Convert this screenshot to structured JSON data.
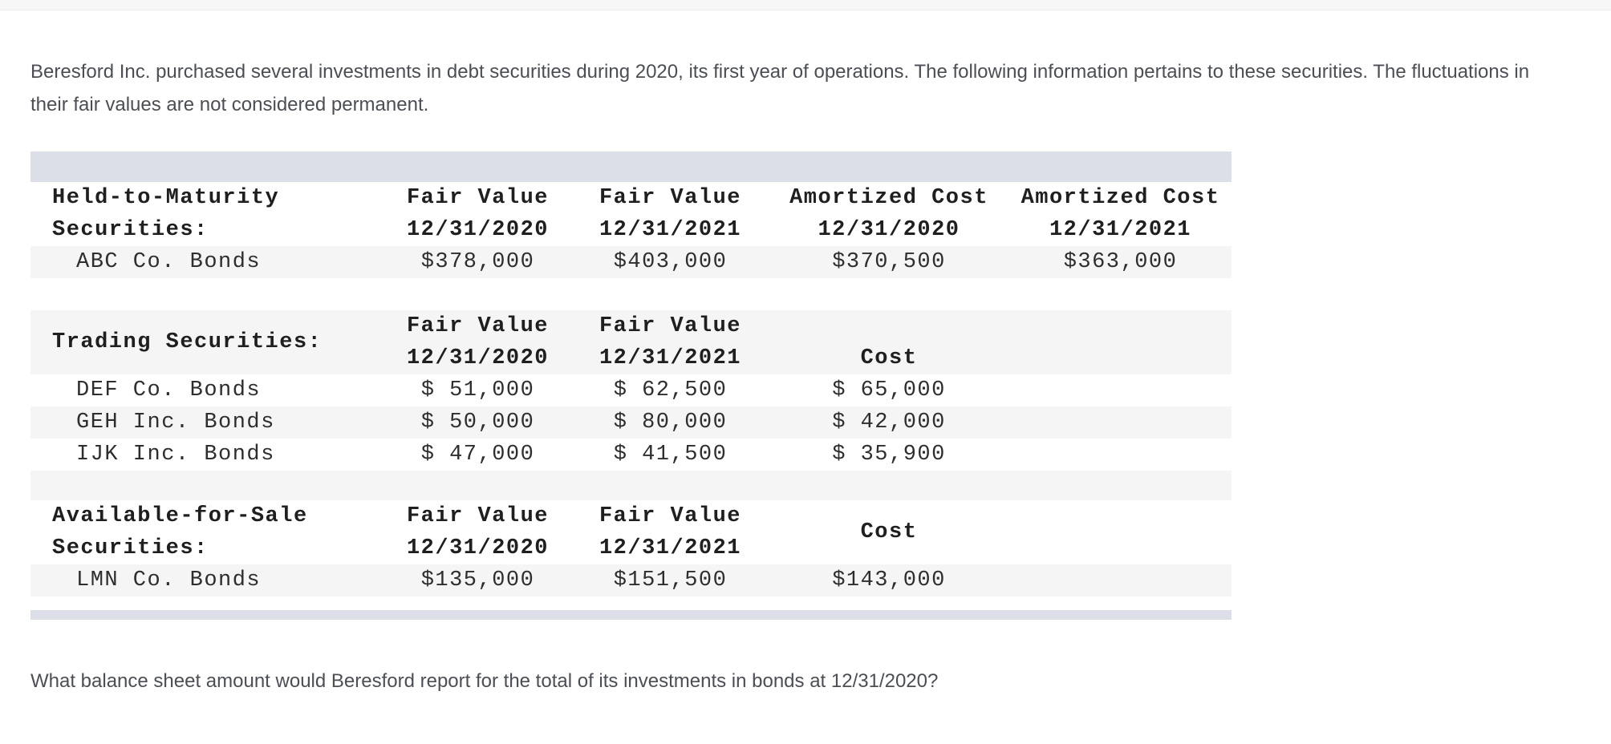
{
  "problem": {
    "intro": "Beresford Inc. purchased several investments in debt securities during 2020, its first year of operations. The following information pertains to these securities. The fluctuations in their fair values are not considered permanent.",
    "question": "What balance sheet amount would Beresford report for the total of its investments in bonds at 12/31/2020?"
  },
  "table": {
    "sections": [
      {
        "title_lines": [
          "Held-to-Maturity",
          "Securities:"
        ],
        "headers": [
          [
            "Fair Value",
            "12/31/2020"
          ],
          [
            "Fair Value",
            "12/31/2021"
          ],
          [
            "Amortized Cost",
            "12/31/2020"
          ],
          [
            "Amortized Cost",
            "12/31/2021"
          ]
        ],
        "rows": [
          {
            "label": "ABC Co. Bonds",
            "values": [
              "$378,000",
              "$403,000",
              "$370,500",
              "$363,000"
            ]
          }
        ]
      },
      {
        "title_lines": [
          "Trading Securities:"
        ],
        "headers": [
          [
            "Fair Value",
            "12/31/2020"
          ],
          [
            "Fair Value",
            "12/31/2021"
          ]
        ],
        "cost_header": "Cost",
        "rows": [
          {
            "label": "DEF Co. Bonds",
            "values": [
              "$ 51,000",
              "$ 62,500",
              "$ 65,000"
            ]
          },
          {
            "label": "GEH Inc. Bonds",
            "values": [
              "$ 50,000",
              "$ 80,000",
              "$ 42,000"
            ]
          },
          {
            "label": "IJK Inc. Bonds",
            "values": [
              "$ 47,000",
              "$ 41,500",
              "$ 35,900"
            ]
          }
        ]
      },
      {
        "title_lines": [
          "Available-for-Sale",
          "Securities:"
        ],
        "headers": [
          [
            "Fair Value",
            "12/31/2020"
          ],
          [
            "Fair Value",
            "12/31/2021"
          ]
        ],
        "cost_header": "Cost",
        "rows": [
          {
            "label": "LMN Co. Bonds",
            "values": [
              "$135,000",
              "$151,500",
              "$143,000"
            ]
          }
        ]
      }
    ]
  },
  "colors": {
    "band": "#dcdfe8",
    "row_stripe": "#f5f5f6",
    "body_text": "#4b4f55",
    "table_text": "#2e2e2e",
    "topbar": "#f7f7f8"
  }
}
